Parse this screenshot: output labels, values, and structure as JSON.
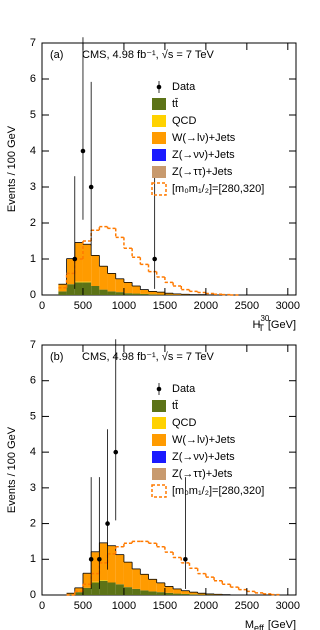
{
  "chart_data": [
    {
      "type": "histogram",
      "panel_label": "(a)",
      "annotation": "CMS, 4.98 fb⁻¹, √s = 7 TeV",
      "ylabel": "Events / 100 GeV",
      "xlabel": {
        "main": "H",
        "sup": "30",
        "sub": "T",
        "unit": "[GeV]"
      },
      "xlim": [
        0,
        3100
      ],
      "ylim": [
        0,
        7
      ],
      "xticks": [
        0,
        500,
        1000,
        1500,
        2000,
        2500,
        3000
      ],
      "yticks": [
        0,
        1,
        2,
        3,
        4,
        5,
        6,
        7
      ],
      "bins": [
        200,
        300,
        400,
        500,
        600,
        700,
        800,
        900,
        1000,
        1100,
        1200,
        1300,
        1400,
        1500,
        1600,
        1700,
        1800,
        1900,
        2000,
        2100,
        2200,
        2300,
        2400
      ],
      "data": {
        "name": "Data",
        "color": "#000000",
        "x": [
          400,
          500,
          600,
          1375
        ],
        "values": [
          1,
          4,
          3,
          1
        ],
        "yerr_low": [
          0.83,
          1.91,
          1.63,
          0.83
        ],
        "yerr_high": [
          2.3,
          3.16,
          2.92,
          2.3
        ]
      },
      "series": [
        {
          "name": "tt̄",
          "color": "#5c7317",
          "values": [
            0.1,
            0.3,
            0.35,
            0.35,
            0.25,
            0.15,
            0.1,
            0.08,
            0.05,
            0.04,
            0.03,
            0.02,
            0.01,
            0.01,
            0,
            0,
            0,
            0,
            0,
            0,
            0,
            0
          ]
        },
        {
          "name": "QCD",
          "color": "#ffd200",
          "values": [
            0,
            0,
            0.02,
            0.02,
            0,
            0,
            0,
            0,
            0,
            0,
            0,
            0,
            0,
            0,
            0,
            0,
            0,
            0,
            0,
            0,
            0,
            0
          ]
        },
        {
          "name": "W(→lν)+Jets",
          "color": "#ff9b00",
          "values": [
            0.2,
            0.7,
            1.08,
            1.03,
            0.85,
            0.65,
            0.5,
            0.37,
            0.3,
            0.21,
            0.12,
            0.08,
            0.07,
            0.04,
            0.03,
            0.02,
            0.01,
            0.01,
            0,
            0,
            0,
            0
          ]
        },
        {
          "name": "Z(→νν)+Jets",
          "color": "#1a1aff",
          "values": [
            0,
            0,
            0,
            0,
            0,
            0,
            0,
            0,
            0,
            0,
            0,
            0,
            0,
            0,
            0,
            0,
            0,
            0,
            0,
            0,
            0,
            0
          ]
        },
        {
          "name": "Z(→ττ)+Jets",
          "color": "#c89a6e",
          "values": [
            0,
            0.01,
            0.01,
            0.01,
            0,
            0,
            0,
            0,
            0,
            0,
            0,
            0,
            0,
            0,
            0,
            0,
            0,
            0,
            0,
            0,
            0,
            0
          ]
        }
      ],
      "signal": {
        "name": "[m₀m₁/₂]=[280,320]",
        "color": "#ff7a00",
        "values": [
          0.2,
          0.6,
          1.0,
          1.5,
          1.8,
          1.9,
          1.85,
          1.6,
          1.3,
          1.05,
          0.85,
          0.65,
          0.5,
          0.35,
          0.25,
          0.15,
          0.1,
          0.07,
          0.04,
          0.02,
          0.01,
          0
        ]
      }
    },
    {
      "type": "histogram",
      "panel_label": "(b)",
      "annotation": "CMS, 4.98 fb⁻¹, √s = 7 TeV",
      "ylabel": "Events / 100 GeV",
      "xlabel": {
        "main": "M",
        "sub": "eff",
        "unit": "[GeV]"
      },
      "xlim": [
        0,
        3100
      ],
      "ylim": [
        0,
        7
      ],
      "xticks": [
        0,
        500,
        1000,
        1500,
        2000,
        2500,
        3000
      ],
      "yticks": [
        0,
        1,
        2,
        3,
        4,
        5,
        6,
        7
      ],
      "bins": [
        300,
        400,
        500,
        600,
        700,
        800,
        900,
        1000,
        1100,
        1200,
        1300,
        1400,
        1500,
        1600,
        1700,
        1800,
        1900,
        2000,
        2100,
        2200,
        2300,
        2400,
        2500,
        2600,
        2700,
        2800,
        2900
      ],
      "data": {
        "name": "Data",
        "color": "#000000",
        "x": [
          600,
          700,
          800,
          900,
          1750
        ],
        "values": [
          1,
          1,
          2,
          4,
          1
        ],
        "yerr_low": [
          0.83,
          0.83,
          1.29,
          1.91,
          0.83
        ],
        "yerr_high": [
          2.3,
          2.3,
          2.64,
          3.16,
          2.3
        ]
      },
      "series": [
        {
          "name": "tt̄",
          "color": "#5c7317",
          "values": [
            0.02,
            0.08,
            0.2,
            0.35,
            0.4,
            0.35,
            0.3,
            0.22,
            0.17,
            0.13,
            0.1,
            0.08,
            0.06,
            0.04,
            0.03,
            0.02,
            0.01,
            0.01,
            0,
            0,
            0,
            0,
            0,
            0,
            0,
            0
          ]
        },
        {
          "name": "QCD",
          "color": "#ffd200",
          "values": [
            0,
            0,
            0,
            0.02,
            0.02,
            0,
            0,
            0,
            0,
            0,
            0,
            0,
            0,
            0,
            0,
            0,
            0,
            0,
            0,
            0,
            0,
            0,
            0,
            0,
            0,
            0
          ]
        },
        {
          "name": "W(→lν)+Jets",
          "color": "#ff9b00",
          "values": [
            0.03,
            0.12,
            0.4,
            0.83,
            1.03,
            1.03,
            0.83,
            0.7,
            0.56,
            0.45,
            0.34,
            0.26,
            0.18,
            0.13,
            0.09,
            0.06,
            0.04,
            0.02,
            0.02,
            0.01,
            0,
            0,
            0,
            0,
            0,
            0
          ]
        },
        {
          "name": "Z(→νν)+Jets",
          "color": "#1a1aff",
          "values": [
            0,
            0,
            0,
            0,
            0,
            0,
            0,
            0,
            0,
            0,
            0,
            0,
            0,
            0,
            0,
            0,
            0,
            0,
            0,
            0,
            0,
            0,
            0,
            0,
            0,
            0
          ]
        },
        {
          "name": "Z(→ττ)+Jets",
          "color": "#c89a6e",
          "values": [
            0,
            0,
            0.01,
            0.01,
            0.01,
            0,
            0,
            0,
            0,
            0,
            0,
            0,
            0,
            0,
            0,
            0,
            0,
            0,
            0,
            0,
            0,
            0,
            0,
            0,
            0,
            0
          ]
        }
      ],
      "signal": {
        "name": "[m₀m₁/₂]=[280,320]",
        "color": "#ff7a00",
        "values": [
          0,
          0.1,
          0.3,
          0.6,
          0.9,
          1.15,
          1.35,
          1.45,
          1.5,
          1.5,
          1.45,
          1.35,
          1.2,
          1.05,
          0.9,
          0.75,
          0.6,
          0.5,
          0.4,
          0.3,
          0.22,
          0.15,
          0.1,
          0.06,
          0.03,
          0.01
        ]
      }
    }
  ]
}
